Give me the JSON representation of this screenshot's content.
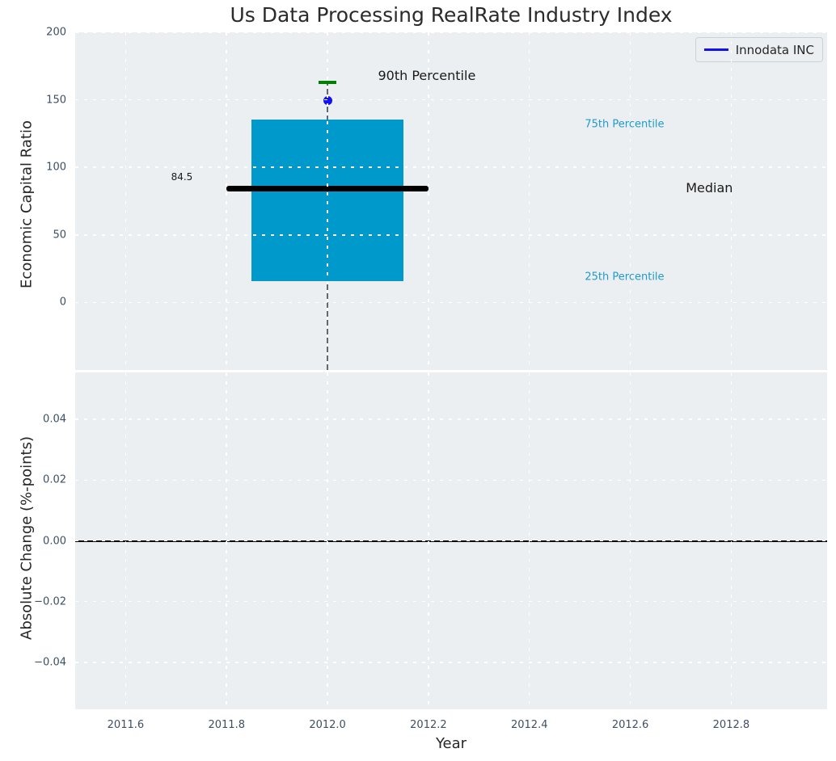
{
  "title": "Us Data Processing RealRate Industry Index",
  "legend": {
    "label": "Innodata INC"
  },
  "colors": {
    "box_fill": "#0099cc",
    "median_line": "#000000",
    "whisker": "#5f6a6e",
    "p90_cap": "#008000",
    "company_marker": "#1212f0",
    "legend_line": "#1212f0",
    "axes_background": "#eceff1",
    "gridline": "#ffffff",
    "tick_text": "#3d4f63",
    "label_text": "#262626",
    "percentile_text": "#1e9bcd",
    "zero_line": "#000000"
  },
  "chart_data": [
    {
      "type": "boxplot",
      "title": "Us Data Processing RealRate Industry Index",
      "ylabel": "Economic Capital Ratio",
      "xlim": [
        2011.5,
        2012.99
      ],
      "ylim": [
        -50,
        200
      ],
      "grid": true,
      "yticks": [
        {
          "v": 0,
          "label": "0"
        },
        {
          "v": 50,
          "label": "50"
        },
        {
          "v": 100,
          "label": "100"
        },
        {
          "v": 150,
          "label": "150"
        },
        {
          "v": 200,
          "label": "200"
        }
      ],
      "box": {
        "x_center": 2012.0,
        "x_left": 2011.85,
        "x_right": 2012.15,
        "p25": 15.5,
        "median": 84.5,
        "p75": 135.5,
        "p90": 163,
        "median_line_x": [
          2011.8,
          2012.2
        ],
        "median_label": "84.5",
        "whisker_low_clipped_at": -50
      },
      "series": [
        {
          "name": "Innodata INC",
          "x": [
            2012.0
          ],
          "y": [
            149.5
          ],
          "marker": "circle"
        }
      ],
      "annotations": [
        {
          "text": "90th Percentile",
          "x": 2012.1,
          "y": 168,
          "style": "dark-large"
        },
        {
          "text": "75th Percentile",
          "x": 2012.51,
          "y": 132,
          "style": "cyan-small"
        },
        {
          "text": "Median",
          "x": 2012.71,
          "y": 84.5,
          "style": "dark-large"
        },
        {
          "text": "25th Percentile",
          "x": 2012.51,
          "y": 18.5,
          "style": "cyan-small"
        },
        {
          "text": "84.5",
          "x": 2011.69,
          "y": 93,
          "style": "dark-tiny"
        }
      ],
      "legend_entries": [
        "Innodata INC"
      ],
      "legend_position": "upper right"
    },
    {
      "type": "line",
      "ylabel": "Absolute Change (%-points)",
      "xlabel": "Year",
      "xlim": [
        2011.5,
        2012.99
      ],
      "ylim": [
        -0.0555,
        0.0555
      ],
      "grid": true,
      "zero_line": 0.0,
      "yticks": [
        {
          "v": 0.04,
          "label": "0.04"
        },
        {
          "v": 0.02,
          "label": "0.02"
        },
        {
          "v": 0.0,
          "label": "0.00"
        },
        {
          "v": -0.02,
          "label": "−0.02"
        },
        {
          "v": -0.04,
          "label": "−0.04"
        }
      ],
      "xticks": [
        {
          "v": 2011.6,
          "label": "2011.6"
        },
        {
          "v": 2011.8,
          "label": "2011.8"
        },
        {
          "v": 2012.0,
          "label": "2012.0"
        },
        {
          "v": 2012.2,
          "label": "2012.2"
        },
        {
          "v": 2012.4,
          "label": "2012.4"
        },
        {
          "v": 2012.6,
          "label": "2012.6"
        },
        {
          "v": 2012.8,
          "label": "2012.8"
        }
      ],
      "series": []
    }
  ]
}
